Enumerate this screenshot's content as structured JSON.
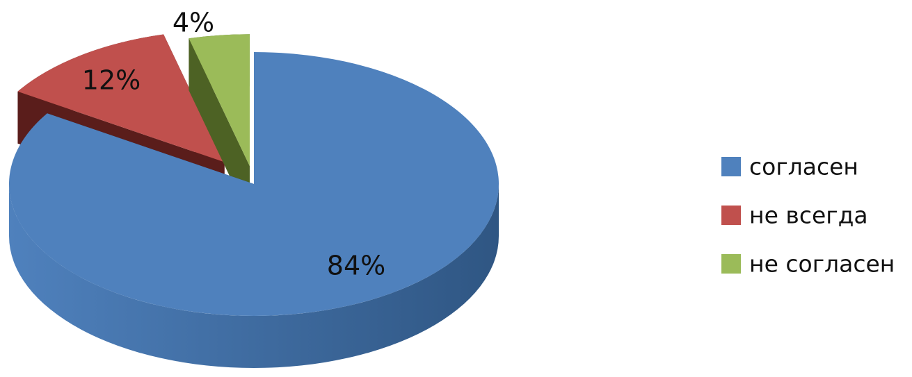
{
  "chart_data": {
    "type": "pie",
    "style": "3d-exploded",
    "categories": [
      "согласен",
      "не всегда",
      "не согласен"
    ],
    "values": [
      84,
      12,
      4
    ],
    "data_labels": [
      "84%",
      "12%",
      "4%"
    ],
    "colors": [
      "#4f81bd",
      "#c0504d",
      "#9bbb59"
    ],
    "side_colors": [
      "#2f5683",
      "#5a1d1b",
      "#4d6224"
    ],
    "legend": {
      "position": "right",
      "entries": [
        "согласен",
        "не всегда",
        "не согласен"
      ]
    }
  }
}
